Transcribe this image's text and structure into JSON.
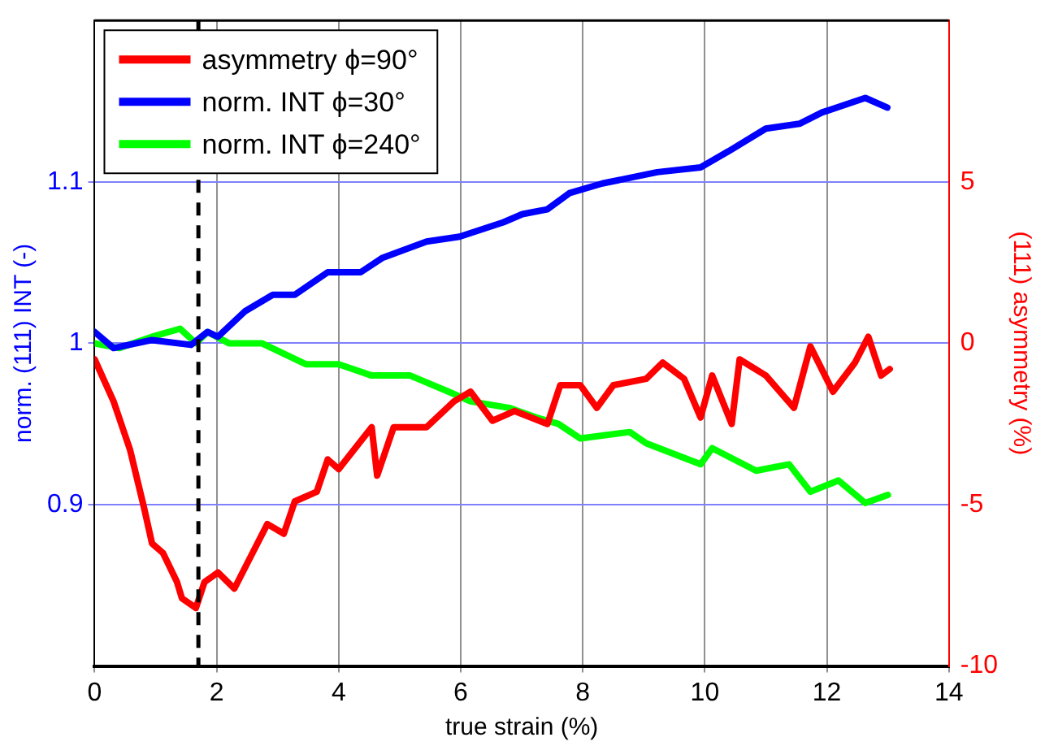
{
  "chart_data": {
    "type": "line",
    "xlabel": "true strain (%)",
    "ylabel": "norm. (111) INT (-)",
    "y2label": "(111) asymmetry (%)",
    "xlim": [
      0,
      14
    ],
    "xticks": [
      0,
      2,
      4,
      6,
      8,
      10,
      12,
      14
    ],
    "ylim": [
      0.8,
      1.2
    ],
    "yticks": [
      0.9,
      1,
      1.1
    ],
    "y2lim": [
      -10,
      10
    ],
    "y2ticks": [
      -10,
      -5,
      0,
      5
    ],
    "grid": true,
    "legend": "top left",
    "line_style": "solid",
    "marker": "none",
    "ref_lines": [
      {
        "axis": "x",
        "value": 1.7,
        "color": "#000000",
        "line_style": "dashed"
      }
    ],
    "series": [
      {
        "name": "asymmetry ϕ=90°",
        "color": "#ff0000",
        "axis": "y2",
        "x": [
          0,
          0.31,
          0.58,
          0.81,
          0.94,
          1.12,
          1.35,
          1.43,
          1.66,
          1.8,
          2.02,
          2.29,
          2.56,
          2.83,
          3.1,
          3.28,
          3.64,
          3.82,
          4,
          4.54,
          4.63,
          4.9,
          5.44,
          5.89,
          6.16,
          6.52,
          6.88,
          7.42,
          7.63,
          7.96,
          8.23,
          8.5,
          9.04,
          9.31,
          9.66,
          9.93,
          10.12,
          10.44,
          10.57,
          11,
          11.46,
          11.73,
          12.1,
          12.46,
          12.68,
          12.89,
          13.03
        ],
        "values": [
          -0.5,
          -1.8,
          -3.3,
          -5.1,
          -6.2,
          -6.5,
          -7.4,
          -7.9,
          -8.2,
          -7.4,
          -7.1,
          -7.6,
          -6.6,
          -5.6,
          -5.9,
          -4.9,
          -4.6,
          -3.6,
          -3.9,
          -2.6,
          -4.1,
          -2.6,
          -2.6,
          -1.8,
          -1.5,
          -2.4,
          -2.1,
          -2.5,
          -1.3,
          -1.3,
          -2,
          -1.3,
          -1.1,
          -0.6,
          -1.1,
          -2.3,
          -1,
          -2.5,
          -0.5,
          -1,
          -2,
          -0.1,
          -1.5,
          -0.6,
          0.2,
          -1,
          -0.8
        ]
      },
      {
        "name": "norm. INT ϕ=30°",
        "color": "#0000ff",
        "x": [
          0,
          0.31,
          0.94,
          1.58,
          1.85,
          2.02,
          2.47,
          2.92,
          3.28,
          3.82,
          4.36,
          4.72,
          5.44,
          5.98,
          6.7,
          7.01,
          7.42,
          7.78,
          8.32,
          9.22,
          9.93,
          10.39,
          11,
          11.55,
          11.92,
          12.63,
          12.99
        ],
        "values": [
          1.007,
          0.997,
          1.002,
          0.999,
          1.007,
          1.004,
          1.02,
          1.03,
          1.03,
          1.044,
          1.044,
          1.053,
          1.063,
          1.066,
          1.075,
          1.08,
          1.083,
          1.093,
          1.099,
          1.106,
          1.109,
          1.119,
          1.133,
          1.136,
          1.143,
          1.152,
          1.146
        ]
      },
      {
        "name": "norm. INT ϕ=240°",
        "color": "#00ff00",
        "x": [
          0,
          0.4,
          0.94,
          1.4,
          1.66,
          1.85,
          2.2,
          2.74,
          3.46,
          4,
          4.54,
          5.17,
          5.8,
          6.16,
          6.79,
          7.24,
          7.6,
          7.96,
          8.77,
          9.04,
          9.93,
          10.12,
          10.84,
          11.38,
          11.73,
          12.19,
          12.63,
          13
        ],
        "values": [
          1,
          0.997,
          1.004,
          1.009,
          1,
          1.007,
          1,
          1,
          0.987,
          0.987,
          0.98,
          0.98,
          0.97,
          0.964,
          0.96,
          0.954,
          0.95,
          0.941,
          0.945,
          0.938,
          0.925,
          0.935,
          0.921,
          0.925,
          0.908,
          0.915,
          0.901,
          0.906
        ]
      }
    ]
  }
}
